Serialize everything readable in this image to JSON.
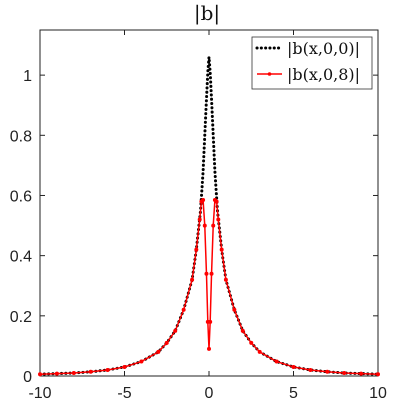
{
  "chart_data": {
    "type": "line",
    "title": "|b|",
    "xlabel": "",
    "ylabel": "",
    "xlim": [
      -10,
      10
    ],
    "ylim": [
      0,
      1.15
    ],
    "x_ticks": [
      -10,
      -5,
      0,
      5,
      10
    ],
    "y_ticks": [
      0,
      0.2,
      0.4,
      0.6,
      0.8,
      1
    ],
    "x_tick_labels": [
      "-10",
      "-5",
      "0",
      "5",
      "10"
    ],
    "y_tick_labels": [
      "0",
      "0.2",
      "0.4",
      "0.6",
      "0.8",
      "1"
    ],
    "grid": false,
    "legend": {
      "placement": "top-right",
      "entries": [
        {
          "label": "|b(x,0,0)|",
          "color": "#000000",
          "style": "dotted"
        },
        {
          "label": "|b(x,0,8)|",
          "color": "#ff0000",
          "style": "solid-marker"
        }
      ]
    },
    "series": [
      {
        "name": "|b(x,0,0)|",
        "color": "#000000",
        "style": "dotted",
        "points": [
          [
            -10,
            0.006
          ],
          [
            -9,
            0.008
          ],
          [
            -8,
            0.01
          ],
          [
            -7,
            0.014
          ],
          [
            -6,
            0.02
          ],
          [
            -5,
            0.03
          ],
          [
            -4,
            0.048
          ],
          [
            -3,
            0.08
          ],
          [
            -2.5,
            0.11
          ],
          [
            -2,
            0.15
          ],
          [
            -1.5,
            0.22
          ],
          [
            -1,
            0.32
          ],
          [
            -0.75,
            0.42
          ],
          [
            -0.5,
            0.55
          ],
          [
            -0.35,
            0.68
          ],
          [
            -0.25,
            0.8
          ],
          [
            -0.15,
            0.92
          ],
          [
            -0.07,
            1.01
          ],
          [
            0,
            1.06
          ],
          [
            0.07,
            1.01
          ],
          [
            0.15,
            0.92
          ],
          [
            0.25,
            0.8
          ],
          [
            0.35,
            0.68
          ],
          [
            0.5,
            0.55
          ],
          [
            0.75,
            0.42
          ],
          [
            1,
            0.32
          ],
          [
            1.5,
            0.22
          ],
          [
            2,
            0.15
          ],
          [
            2.5,
            0.11
          ],
          [
            3,
            0.08
          ],
          [
            4,
            0.048
          ],
          [
            5,
            0.03
          ],
          [
            6,
            0.02
          ],
          [
            7,
            0.014
          ],
          [
            8,
            0.01
          ],
          [
            9,
            0.008
          ],
          [
            10,
            0.006
          ]
        ]
      },
      {
        "name": "|b(x,0,8)|",
        "color": "#ff0000",
        "style": "solid-marker",
        "points": [
          [
            -10,
            0.006
          ],
          [
            -9,
            0.008
          ],
          [
            -8,
            0.01
          ],
          [
            -7,
            0.014
          ],
          [
            -6,
            0.02
          ],
          [
            -5,
            0.03
          ],
          [
            -4,
            0.048
          ],
          [
            -3,
            0.08
          ],
          [
            -2.5,
            0.11
          ],
          [
            -2,
            0.15
          ],
          [
            -1.5,
            0.22
          ],
          [
            -1,
            0.32
          ],
          [
            -0.75,
            0.42
          ],
          [
            -0.55,
            0.52
          ],
          [
            -0.45,
            0.58
          ],
          [
            -0.35,
            0.585
          ],
          [
            -0.25,
            0.5
          ],
          [
            -0.15,
            0.34
          ],
          [
            -0.07,
            0.18
          ],
          [
            0,
            0.09
          ],
          [
            0.07,
            0.18
          ],
          [
            0.15,
            0.34
          ],
          [
            0.25,
            0.5
          ],
          [
            0.35,
            0.585
          ],
          [
            0.45,
            0.58
          ],
          [
            0.55,
            0.52
          ],
          [
            0.75,
            0.42
          ],
          [
            1,
            0.32
          ],
          [
            1.5,
            0.22
          ],
          [
            2,
            0.15
          ],
          [
            2.5,
            0.11
          ],
          [
            3,
            0.08
          ],
          [
            4,
            0.048
          ],
          [
            5,
            0.03
          ],
          [
            6,
            0.02
          ],
          [
            7,
            0.014
          ],
          [
            8,
            0.01
          ],
          [
            9,
            0.008
          ],
          [
            10,
            0.006
          ]
        ]
      }
    ]
  }
}
